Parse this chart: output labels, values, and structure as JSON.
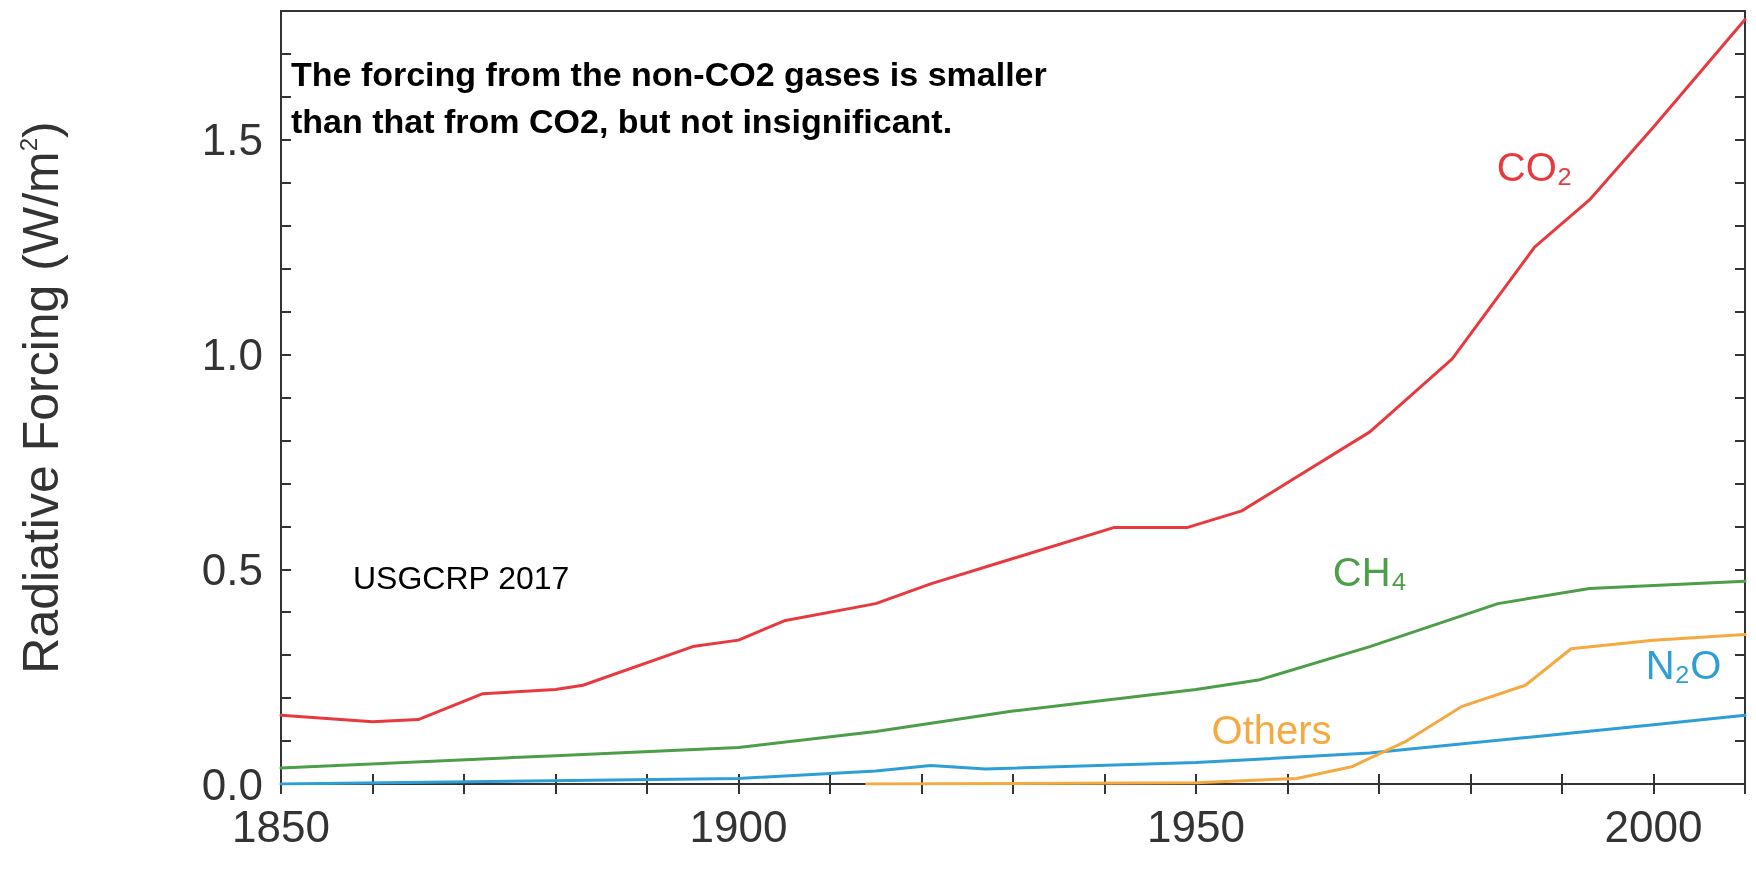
{
  "chart_data": {
    "type": "line",
    "ylabel": "Radiative Forcing (W/m$^{2}$)",
    "annotations": [
      "The forcing from the non-CO2 gases is smaller than that from CO2, but not insignificant.",
      "USGCRP 2017"
    ],
    "xlim": [
      1850,
      2010
    ],
    "xticks": [
      1850,
      {
        "value": 1860,
        "label": null
      },
      {
        "value": 1870,
        "label": null
      },
      {
        "value": 1880,
        "label": null
      },
      {
        "value": 1890,
        "label": null
      },
      1900,
      {
        "value": 1910,
        "label": null
      },
      {
        "value": 1920,
        "label": null
      },
      {
        "value": 1930,
        "label": null
      },
      {
        "value": 1940,
        "label": null
      },
      1950,
      {
        "value": 1960,
        "label": null
      },
      {
        "value": 1970,
        "label": null
      },
      {
        "value": 1980,
        "label": null
      },
      {
        "value": 1990,
        "label": null
      },
      2000,
      {
        "value": 2010,
        "label": null
      }
    ],
    "ylim": [
      0,
      1.8
    ],
    "yticks": [
      {
        "value": 0,
        "label": "0.0"
      },
      {
        "value": 0.1,
        "label": null
      },
      {
        "value": 0.2,
        "label": null
      },
      {
        "value": 0.3,
        "label": null
      },
      {
        "value": 0.4,
        "label": null
      },
      0.5,
      {
        "value": 0.6,
        "label": null
      },
      {
        "value": 0.7,
        "label": null
      },
      {
        "value": 0.8,
        "label": null
      },
      {
        "value": 0.9,
        "label": null
      },
      {
        "value": 1,
        "label": "1.0"
      },
      {
        "value": 1.1,
        "label": null
      },
      {
        "value": 1.2,
        "label": null
      },
      {
        "value": 1.3,
        "label": null
      },
      {
        "value": 1.4,
        "label": null
      },
      1.5,
      {
        "value": 1.6,
        "label": null
      },
      {
        "value": 1.7,
        "label": null
      }
    ],
    "grid": false,
    "legend": false,
    "marker": "none",
    "line_style": "solid",
    "series": [
      {
        "name": "CO₂",
        "color": "#e8393f",
        "x": [
          1850,
          1860,
          1865,
          1872,
          1880,
          1883,
          1895,
          1900,
          1905,
          1915,
          1921,
          1930,
          1941,
          1949,
          1955,
          1961,
          1969,
          1978,
          1987,
          1993,
          2000,
          2010
        ],
        "values": [
          0.16,
          0.145,
          0.15,
          0.21,
          0.22,
          0.23,
          0.32,
          0.335,
          0.38,
          0.42,
          0.466,
          0.525,
          0.597,
          0.597,
          0.636,
          0.715,
          0.82,
          0.99,
          1.25,
          1.36,
          1.53,
          1.78
        ]
      },
      {
        "name": "CH₄",
        "color": "#4d9e48",
        "x": [
          1850,
          1880,
          1900,
          1915,
          1930,
          1950,
          1957,
          1969,
          1983,
          1993,
          2010
        ],
        "values": [
          0.037,
          0.066,
          0.085,
          0.122,
          0.17,
          0.22,
          0.243,
          0.32,
          0.42,
          0.455,
          0.472
        ]
      },
      {
        "name": "N₂O",
        "color": "#2d9fd6",
        "x": [
          1850,
          1900,
          1915,
          1921,
          1927,
          1950,
          1969,
          1987,
          2000,
          2010
        ],
        "values": [
          0,
          0.013,
          0.03,
          0.043,
          0.035,
          0.05,
          0.072,
          0.11,
          0.138,
          0.16
        ]
      },
      {
        "name": "Others",
        "color": "#f5a941",
        "x": [
          1914,
          1950,
          1961,
          1967,
          1973,
          1979,
          1986,
          1991,
          2000,
          2010
        ],
        "values": [
          0,
          0.003,
          0.013,
          0.04,
          0.1,
          0.18,
          0.23,
          0.315,
          0.335,
          0.348
        ]
      }
    ]
  }
}
